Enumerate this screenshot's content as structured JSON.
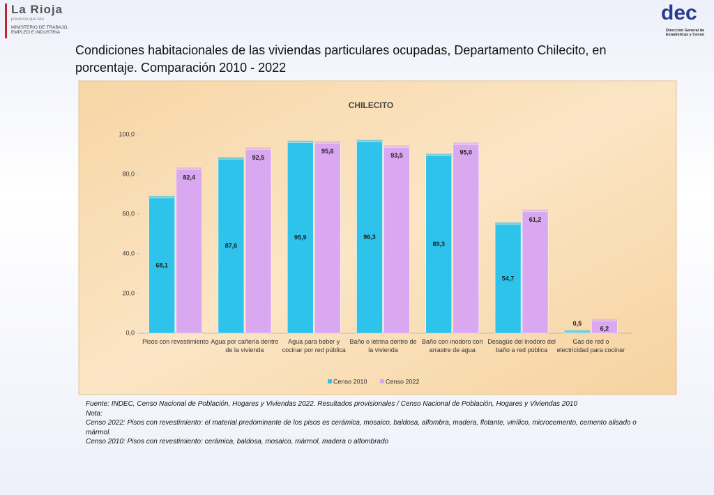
{
  "header": {
    "logo_left": "La Rioja",
    "logo_left_tagline": "provincia que late",
    "ministry": "MINISTERIO DE TRABAJO, EMPLEO E INDUSTRIA",
    "logo_right": "dec",
    "logo_right_caption": "Dirección General de Estadísticas y Censo"
  },
  "title": "Condiciones habitacionales de las viviendas particulares ocupadas, Departamento Chilecito, en porcentaje. Comparación 2010 - 2022",
  "chart_data": {
    "type": "bar",
    "title": "CHILECITO",
    "categories": [
      "Pisos con revestimiento",
      "Agua por cañería dentro de la vivienda",
      "Agua para beber y cocinar por red pública",
      "Baño o letrina dentro de la vivienda",
      "Baño con inodoro con arrastre de agua",
      "Desagüe del inodoro del baño a red pública",
      "Gas de red o electricidad para cocinar"
    ],
    "series": [
      {
        "name": "Censo 2010",
        "color": "#2ec3ea",
        "values": [
          68.1,
          87.6,
          95.9,
          96.3,
          89.3,
          54.7,
          0.5
        ],
        "value_labels": [
          "68,1",
          "87,6",
          "95,9",
          "96,3",
          "89,3",
          "54,7",
          "0,5"
        ]
      },
      {
        "name": "Censo 2022",
        "color": "#d9a8f0",
        "values": [
          82.4,
          92.5,
          95.6,
          93.5,
          95.0,
          61.2,
          6.2
        ],
        "value_labels": [
          "82,4",
          "92,5",
          "95,6",
          "93,5",
          "95,0",
          "61,2",
          "6,2"
        ]
      }
    ],
    "ylim": [
      0,
      100
    ],
    "yticks": [
      {
        "value": 0,
        "label": "0,0"
      },
      {
        "value": 20,
        "label": "20,0"
      },
      {
        "value": 40,
        "label": "40,0"
      },
      {
        "value": 60,
        "label": "60,0"
      },
      {
        "value": 80,
        "label": "80,0"
      },
      {
        "value": 100,
        "label": "100,0"
      }
    ],
    "legend": "bottom"
  },
  "notes": [
    "Fuente: INDEC, Censo Nacional de Población, Hogares y Viviendas 2022. Resultados provisionales / Censo Nacional de Población, Hogares y Viviendas 2010",
    "Nota:",
    "Censo 2022: Pisos con revestimiento: el material predominante de los pisos es cerámica, mosaico, baldosa, alfombra, madera, flotante, vinílico, microcemento, cemento alisado o mármol.",
    "Censo 2010: Pisos con revestimiento: cerámica, baldosa, mosaico, mármol, madera o alfombrado"
  ]
}
